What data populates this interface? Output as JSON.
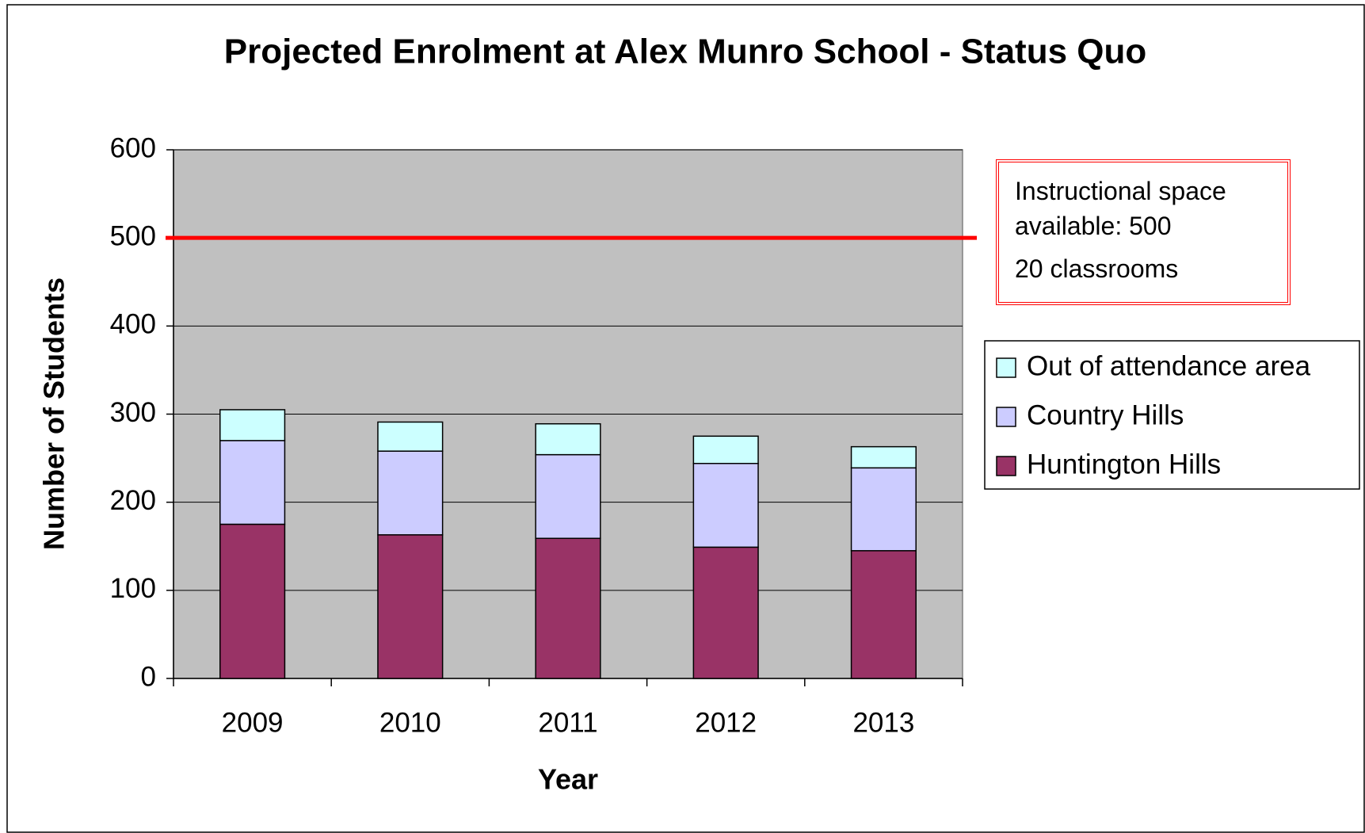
{
  "chart_data": {
    "type": "stacked_bar",
    "title": "Projected Enrolment at Alex Munro School - Status Quo",
    "x_label": "Year",
    "y_label": "Number of Students",
    "categories": [
      "2009",
      "2010",
      "2011",
      "2012",
      "2013"
    ],
    "series": [
      {
        "name": "Huntington Hills",
        "color": "#993366",
        "values": [
          175,
          163,
          159,
          149,
          145
        ]
      },
      {
        "name": "Country Hills",
        "color": "#ccccff",
        "values": [
          95,
          95,
          95,
          95,
          94
        ]
      },
      {
        "name": "Out of attendance area",
        "color": "#ccffff",
        "values": [
          35,
          33,
          35,
          31,
          24
        ]
      }
    ],
    "ylim": [
      0,
      600
    ],
    "yticks": [
      0,
      100,
      200,
      300,
      400,
      500,
      600
    ],
    "grid": true,
    "reference_line": {
      "value": 500,
      "color": "#ff0000"
    },
    "annotation": [
      "Instructional space available: 500",
      "20 classrooms"
    ],
    "legend": "right"
  }
}
